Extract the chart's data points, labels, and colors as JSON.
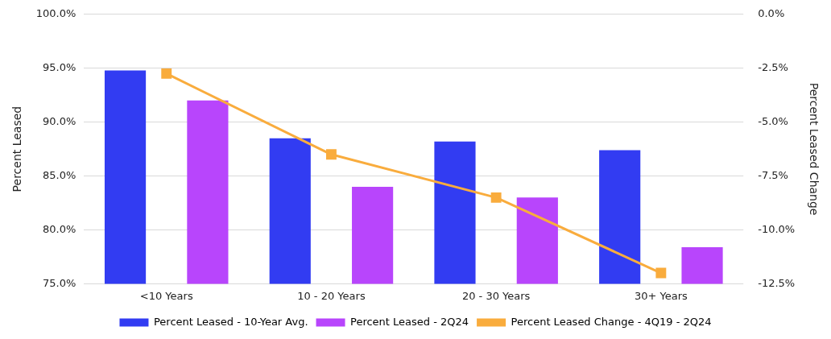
{
  "chart_data": {
    "type": "bar",
    "categories": [
      "<10 Years",
      "10 - 20 Years",
      "20 - 30 Years",
      "30+ Years"
    ],
    "series": [
      {
        "name": "Percent Leased - 10-Year Avg.",
        "color": "#323cf2",
        "values": [
          94.8,
          88.5,
          88.2,
          87.4
        ]
      },
      {
        "name": "Percent Leased - 2Q24",
        "color": "#b845fc",
        "values": [
          92.0,
          84.0,
          83.0,
          78.4
        ]
      },
      {
        "name": "Percent Leased Change - 4Q19 - 2Q24",
        "type": "line",
        "axis": "y2",
        "color": "#f9ac3d",
        "marker": "square",
        "values": [
          -2.75,
          -6.5,
          -8.5,
          -12.0
        ]
      }
    ],
    "ylabel": "Percent Leased",
    "y2label": "Percent Leased Change",
    "ylim": [
      75,
      100
    ],
    "yticks": [
      {
        "value": 75,
        "label": "75.0%"
      },
      {
        "value": 80,
        "label": "80.0%"
      },
      {
        "value": 85,
        "label": "85.0%"
      },
      {
        "value": 90,
        "label": "90.0%"
      },
      {
        "value": 95,
        "label": "95.0%"
      },
      {
        "value": 100,
        "label": "100.0%"
      }
    ],
    "y2lim": [
      -12.5,
      0
    ],
    "y2ticks": [
      {
        "value": -12.5,
        "label": "-12.5%"
      },
      {
        "value": -10,
        "label": "-10.0%"
      },
      {
        "value": -7.5,
        "label": "-7.5%"
      },
      {
        "value": -5,
        "label": "-5.0%"
      },
      {
        "value": -2.5,
        "label": "-2.5%"
      },
      {
        "value": 0,
        "label": "0.0%"
      }
    ],
    "grid": "y",
    "legend": "bottom"
  }
}
